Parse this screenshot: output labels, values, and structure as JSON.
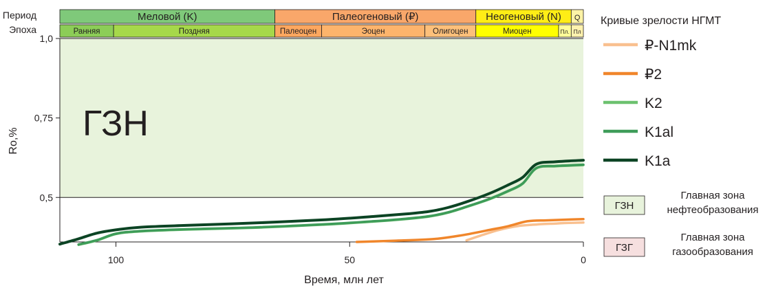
{
  "chart_data": {
    "type": "line",
    "xlabel": "Время, млн лет",
    "ylabel": "Ro,%",
    "xlim": [
      112,
      0
    ],
    "ylim": [
      0.36,
      1.0
    ],
    "x_ticks": [
      100,
      50,
      0
    ],
    "y_ticks": [
      "1,0",
      "0,75",
      "0,5"
    ],
    "y_tick_values": [
      1.0,
      0.75,
      0.5
    ],
    "zones": [
      {
        "label": "ГЗН",
        "y_from": 0.5,
        "y_to": 1.0,
        "color": "#e8f3dc"
      }
    ],
    "timescale": {
      "period_header": "Период",
      "epoch_header": "Эпоха",
      "periods": [
        {
          "name": "Меловой (K)",
          "start": 112,
          "end": 66,
          "color": "#7fc97a"
        },
        {
          "name": "Палеогеновый (₽)",
          "start": 66,
          "end": 23,
          "color": "#f9a76a"
        },
        {
          "name": "Неогеновый (N)",
          "start": 23,
          "end": 2.6,
          "color": "#ffed16"
        },
        {
          "name": "Q",
          "start": 2.6,
          "end": 0,
          "color": "#fdf3a6"
        }
      ],
      "epochs": [
        {
          "name": "Ранняя",
          "start": 112,
          "end": 100.5,
          "color": "#8ccd57"
        },
        {
          "name": "Поздняя",
          "start": 100.5,
          "end": 66,
          "color": "#a6d84a"
        },
        {
          "name": "Палеоцен",
          "start": 66,
          "end": 56,
          "color": "#fda75f"
        },
        {
          "name": "Эоцен",
          "start": 56,
          "end": 33.9,
          "color": "#fdb46c"
        },
        {
          "name": "Олигоцен",
          "start": 33.9,
          "end": 23,
          "color": "#fdc07a"
        },
        {
          "name": "Миоцен",
          "start": 23,
          "end": 5.3,
          "color": "#ffff00"
        },
        {
          "name": "Пл.",
          "start": 5.3,
          "end": 2.6,
          "color": "#ffff99"
        },
        {
          "name": "Пл",
          "start": 2.6,
          "end": 0,
          "color": "#fff2ae"
        }
      ]
    },
    "series": [
      {
        "name": "₽-N1mk",
        "color": "#f9c08f",
        "x": [
          25,
          22,
          18,
          14,
          10,
          6,
          3,
          0
        ],
        "y": [
          0.365,
          0.38,
          0.398,
          0.41,
          0.415,
          0.418,
          0.42,
          0.421
        ]
      },
      {
        "name": "₽2",
        "color": "#f0862b",
        "x": [
          48.5,
          40,
          32,
          26,
          20,
          16,
          12,
          8,
          4,
          0
        ],
        "y": [
          0.36,
          0.364,
          0.369,
          0.381,
          0.398,
          0.41,
          0.425,
          0.428,
          0.43,
          0.432
        ]
      },
      {
        "name": "K2",
        "color": "#6cc16f",
        "x": [
          108,
          104,
          100,
          95,
          85,
          70,
          55,
          45,
          38,
          33,
          29,
          25,
          20,
          16,
          13,
          10,
          6,
          3,
          0
        ],
        "y": [
          0.351,
          0.365,
          0.385,
          0.393,
          0.399,
          0.405,
          0.415,
          0.424,
          0.432,
          0.44,
          0.452,
          0.47,
          0.495,
          0.52,
          0.543,
          0.592,
          0.598,
          0.6,
          0.602
        ]
      },
      {
        "name": "K1al",
        "color": "#3e9c59",
        "x": [
          108,
          104,
          100,
          95,
          85,
          70,
          55,
          45,
          38,
          33,
          29,
          25,
          20,
          16,
          13,
          10,
          6,
          3,
          0
        ],
        "y": [
          0.352,
          0.366,
          0.386,
          0.394,
          0.4,
          0.406,
          0.416,
          0.425,
          0.433,
          0.441,
          0.453,
          0.471,
          0.496,
          0.521,
          0.544,
          0.593,
          0.599,
          0.601,
          0.603
        ]
      },
      {
        "name": "K1a",
        "color": "#0c4424",
        "x": [
          112,
          108,
          104,
          100,
          95,
          85,
          70,
          55,
          45,
          38,
          33,
          29,
          25,
          20,
          16,
          13,
          10,
          6,
          3,
          0
        ],
        "y": [
          0.353,
          0.37,
          0.388,
          0.398,
          0.406,
          0.412,
          0.42,
          0.43,
          0.44,
          0.448,
          0.456,
          0.468,
          0.486,
          0.513,
          0.54,
          0.563,
          0.605,
          0.612,
          0.615,
          0.617
        ]
      }
    ],
    "legend": {
      "title": "Кривые зрелости НГМТ",
      "position": "right",
      "zones": [
        {
          "label": "ГЗН",
          "desc_line1": "Главная зона",
          "desc_line2": "нефтеобразования",
          "fill": "#e8f3dc"
        },
        {
          "label": "ГЗГ",
          "desc_line1": "Главная зона",
          "desc_line2": "газообразования",
          "fill": "#f6dfdf"
        }
      ]
    }
  }
}
